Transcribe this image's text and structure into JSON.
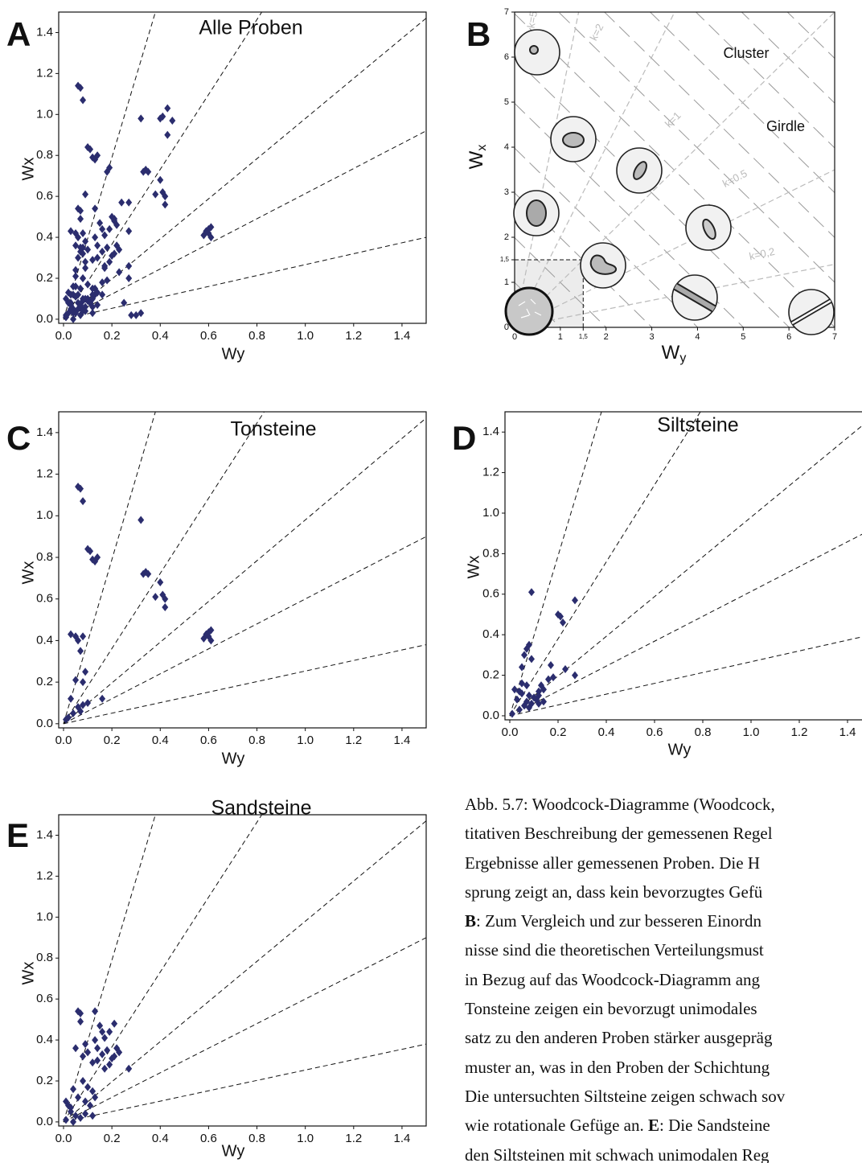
{
  "chart_data": [
    {
      "type": "scatter",
      "panel": "A",
      "title": "Alle Proben",
      "xlabel": "Wy",
      "ylabel": "Wx",
      "color": "#2b2d6e",
      "xlim": [
        -0.02,
        1.5
      ],
      "ylim": [
        -0.02,
        1.5
      ],
      "xticks": [
        {
          "value": 0,
          "label": "0.0"
        },
        0.2,
        0.4,
        0.6,
        0.8,
        {
          "value": 1,
          "label": "1.0"
        },
        1.2,
        1.4
      ],
      "yticks": [
        {
          "value": 0,
          "label": "0.0"
        },
        0.2,
        0.4,
        0.6,
        0.8,
        {
          "value": 1,
          "label": "1.0"
        },
        1.2,
        1.4
      ],
      "reference_lines": [
        {
          "x": [
            0,
            0.38
          ],
          "y": [
            0,
            1.5
          ]
        },
        {
          "x": [
            0,
            0.82
          ],
          "y": [
            0,
            1.5
          ]
        },
        {
          "x": [
            0,
            1.5
          ],
          "y": [
            0,
            1.47
          ]
        },
        {
          "x": [
            0,
            1.5
          ],
          "y": [
            0,
            0.92
          ]
        },
        {
          "x": [
            0,
            1.5
          ],
          "y": [
            0,
            0.4
          ]
        }
      ],
      "x": [
        0.06,
        0.07,
        0.08,
        0.1,
        0.11,
        0.12,
        0.13,
        0.14,
        0.32,
        0.33,
        0.34,
        0.35,
        0.38,
        0.4,
        0.41,
        0.42,
        0.42,
        0.58,
        0.59,
        0.6,
        0.61,
        0.61,
        0.6,
        0.03,
        0.05,
        0.06,
        0.07,
        0.08,
        0.05,
        0.08,
        0.09,
        0.06,
        0.07,
        0.08,
        0.1,
        0.16,
        0.03,
        0.02,
        0.01,
        0.04,
        0.43,
        0.41,
        0.4,
        0.45,
        0.43,
        0.18,
        0.19,
        0.24,
        0.27,
        0.28,
        0.3,
        0.32,
        0.25,
        0.09,
        0.27,
        0.2,
        0.21,
        0.22,
        0.08,
        0.07,
        0.06,
        0.09,
        0.05,
        0.17,
        0.23,
        0.27,
        0.18,
        0.16,
        0.13,
        0.14,
        0.12,
        0.02,
        0.04,
        0.05,
        0.07,
        0.08,
        0.1,
        0.11,
        0.09,
        0.12,
        0.14,
        0.06,
        0.04,
        0.08,
        0.01,
        0.03,
        0.05,
        0.12,
        0.07,
        0.06,
        0.07,
        0.13,
        0.07,
        0.05,
        0.09,
        0.1,
        0.08,
        0.13,
        0.15,
        0.16,
        0.17,
        0.19,
        0.21,
        0.14,
        0.16,
        0.18,
        0.2,
        0.22,
        0.23,
        0.19,
        0.17,
        0.27,
        0.12,
        0.14,
        0.21,
        0.04,
        0.08,
        0.1,
        0.12,
        0.13,
        0.06,
        0.09,
        0.11,
        0.02,
        0.03,
        0.05,
        0.07,
        0.09,
        0.01,
        0.04,
        0.12,
        0.01,
        0.03
      ],
      "values": [
        1.14,
        1.13,
        1.07,
        0.84,
        0.83,
        0.79,
        0.78,
        0.8,
        0.98,
        0.72,
        0.73,
        0.72,
        0.61,
        0.68,
        0.62,
        0.6,
        0.56,
        0.41,
        0.43,
        0.44,
        0.45,
        0.4,
        0.42,
        0.43,
        0.42,
        0.4,
        0.35,
        0.42,
        0.21,
        0.2,
        0.25,
        0.08,
        0.06,
        0.09,
        0.1,
        0.12,
        0.12,
        0.03,
        0.02,
        0.05,
        1.03,
        0.99,
        0.98,
        0.97,
        0.9,
        0.72,
        0.74,
        0.57,
        0.43,
        0.02,
        0.02,
        0.03,
        0.08,
        0.61,
        0.57,
        0.5,
        0.49,
        0.46,
        0.35,
        0.33,
        0.3,
        0.28,
        0.24,
        0.25,
        0.23,
        0.2,
        0.19,
        0.18,
        0.15,
        0.13,
        0.12,
        0.13,
        0.12,
        0.16,
        0.15,
        0.1,
        0.09,
        0.08,
        0.06,
        0.06,
        0.07,
        0.05,
        0.03,
        0.04,
        0.01,
        0.08,
        0.11,
        0.1,
        0.07,
        0.54,
        0.53,
        0.54,
        0.49,
        0.36,
        0.38,
        0.34,
        0.32,
        0.4,
        0.47,
        0.44,
        0.41,
        0.44,
        0.48,
        0.36,
        0.33,
        0.35,
        0.31,
        0.36,
        0.34,
        0.28,
        0.26,
        0.26,
        0.29,
        0.3,
        0.32,
        0.16,
        0.2,
        0.17,
        0.15,
        0.12,
        0.12,
        0.1,
        0.08,
        0.08,
        0.05,
        0.03,
        0.02,
        0.04,
        0.01,
        0,
        0.03,
        0.1,
        0.07
      ]
    },
    {
      "type": "diagram",
      "panel": "B",
      "xlabel": {
        "main": "W",
        "sub": "y"
      },
      "ylabel": {
        "main": "W",
        "sub": "x"
      },
      "xlim": [
        0,
        7
      ],
      "ylim": [
        0,
        7
      ],
      "xticks": [
        0,
        1,
        {
          "value": 1.5,
          "label": "1,5"
        },
        2,
        3,
        4,
        5,
        6,
        7
      ],
      "yticks": [
        0,
        1,
        {
          "value": 1.5,
          "label": "1,5"
        },
        2,
        3,
        4,
        5,
        6,
        7
      ],
      "k_lines": [
        {
          "label": "k=5",
          "x": [
            0,
            1.4
          ],
          "y": [
            0,
            7
          ]
        },
        {
          "label": "k=2",
          "x": [
            0,
            3.5
          ],
          "y": [
            0,
            7
          ]
        },
        {
          "label": "k=1",
          "x": [
            0,
            7
          ],
          "y": [
            0,
            7
          ]
        },
        {
          "label": "k=0.5",
          "x": [
            0,
            7
          ],
          "y": [
            0,
            3.5
          ]
        },
        {
          "label": "k=0,2",
          "x": [
            0,
            7
          ],
          "y": [
            0,
            1.4
          ]
        }
      ],
      "annotations": [
        "Cluster",
        "Girdle"
      ]
    },
    {
      "type": "scatter",
      "panel": "C",
      "title": "Tonsteine",
      "xlabel": "Wy",
      "ylabel": "Wx",
      "color": "#2b2d6e",
      "xlim": [
        -0.02,
        1.5
      ],
      "ylim": [
        -0.02,
        1.5
      ],
      "xticks": [
        {
          "value": 0,
          "label": "0.0"
        },
        0.2,
        0.4,
        0.6,
        0.8,
        {
          "value": 1,
          "label": "1.0"
        },
        1.2,
        1.4
      ],
      "yticks": [
        {
          "value": 0,
          "label": "0.0"
        },
        0.2,
        0.4,
        0.6,
        0.8,
        {
          "value": 1,
          "label": "1.0"
        },
        1.2,
        1.4
      ],
      "reference_lines": [
        {
          "x": [
            0,
            0.38
          ],
          "y": [
            0,
            1.5
          ]
        },
        {
          "x": [
            0,
            0.83
          ],
          "y": [
            0,
            1.5
          ]
        },
        {
          "x": [
            0,
            1.5
          ],
          "y": [
            0,
            1.47
          ]
        },
        {
          "x": [
            0,
            1.5
          ],
          "y": [
            0,
            0.9
          ]
        },
        {
          "x": [
            0,
            1.5
          ],
          "y": [
            0,
            0.38
          ]
        }
      ],
      "x": [
        0.06,
        0.07,
        0.08,
        0.1,
        0.11,
        0.12,
        0.13,
        0.14,
        0.32,
        0.33,
        0.34,
        0.35,
        0.38,
        0.4,
        0.41,
        0.42,
        0.42,
        0.58,
        0.59,
        0.6,
        0.61,
        0.61,
        0.6,
        0.03,
        0.05,
        0.06,
        0.07,
        0.08,
        0.05,
        0.08,
        0.09,
        0.06,
        0.07,
        0.08,
        0.1,
        0.16,
        0.03,
        0.02,
        0.01,
        0.04
      ],
      "values": [
        1.14,
        1.13,
        1.07,
        0.84,
        0.83,
        0.79,
        0.78,
        0.8,
        0.98,
        0.72,
        0.73,
        0.72,
        0.61,
        0.68,
        0.62,
        0.6,
        0.56,
        0.41,
        0.43,
        0.44,
        0.45,
        0.4,
        0.42,
        0.43,
        0.42,
        0.4,
        0.35,
        0.42,
        0.21,
        0.2,
        0.25,
        0.08,
        0.06,
        0.09,
        0.1,
        0.12,
        0.12,
        0.03,
        0.02,
        0.05
      ]
    },
    {
      "type": "scatter",
      "panel": "D",
      "title": "Siltsteine",
      "xlabel": "Wy",
      "ylabel": "Wx",
      "color": "#2b2d6e",
      "xlim": [
        -0.02,
        1.5
      ],
      "ylim": [
        -0.02,
        1.5
      ],
      "xticks": [
        {
          "value": 0,
          "label": "0.0"
        },
        0.2,
        0.4,
        0.6,
        0.8,
        {
          "value": 1,
          "label": "1.0"
        },
        1.2,
        1.4
      ],
      "yticks": [
        {
          "value": 0,
          "label": "0.0"
        },
        0.2,
        0.4,
        0.6,
        0.8,
        {
          "value": 1,
          "label": "1.0"
        },
        1.2,
        1.4
      ],
      "reference_lines": [
        {
          "x": [
            0,
            0.38
          ],
          "y": [
            0,
            1.5
          ]
        },
        {
          "x": [
            0,
            0.79
          ],
          "y": [
            0,
            1.5
          ]
        },
        {
          "x": [
            0,
            1.5
          ],
          "y": [
            0,
            1.47
          ]
        },
        {
          "x": [
            0,
            1.5
          ],
          "y": [
            0,
            0.92
          ]
        },
        {
          "x": [
            0,
            1.5
          ],
          "y": [
            0,
            0.4
          ]
        }
      ],
      "x": [
        0.09,
        0.27,
        0.2,
        0.21,
        0.22,
        0.08,
        0.07,
        0.06,
        0.09,
        0.05,
        0.17,
        0.23,
        0.27,
        0.18,
        0.16,
        0.13,
        0.14,
        0.12,
        0.02,
        0.04,
        0.05,
        0.07,
        0.08,
        0.1,
        0.11,
        0.09,
        0.12,
        0.14,
        0.06,
        0.04,
        0.08,
        0.01,
        0.03,
        0.05,
        0.12,
        0.07
      ],
      "values": [
        0.61,
        0.57,
        0.5,
        0.49,
        0.46,
        0.35,
        0.33,
        0.3,
        0.28,
        0.24,
        0.25,
        0.23,
        0.2,
        0.19,
        0.18,
        0.15,
        0.13,
        0.12,
        0.13,
        0.12,
        0.16,
        0.15,
        0.1,
        0.09,
        0.08,
        0.06,
        0.06,
        0.07,
        0.05,
        0.03,
        0.04,
        0.01,
        0.08,
        0.11,
        0.1,
        0.07
      ]
    },
    {
      "type": "scatter",
      "panel": "E",
      "title": "Sandsteine",
      "xlabel": "Wy",
      "ylabel": "Wx",
      "color": "#2b2d6e",
      "xlim": [
        -0.02,
        1.5
      ],
      "ylim": [
        -0.02,
        1.5
      ],
      "xticks": [
        {
          "value": 0,
          "label": "0.0"
        },
        0.2,
        0.4,
        0.6,
        0.8,
        {
          "value": 1,
          "label": "1.0"
        },
        1.2,
        1.4
      ],
      "yticks": [
        {
          "value": 0,
          "label": "0.0"
        },
        0.2,
        0.4,
        0.6,
        0.8,
        {
          "value": 1,
          "label": "1.0"
        },
        1.2,
        1.4
      ],
      "reference_lines": [
        {
          "x": [
            0,
            0.38
          ],
          "y": [
            0,
            1.5
          ]
        },
        {
          "x": [
            0,
            0.82
          ],
          "y": [
            0,
            1.5
          ]
        },
        {
          "x": [
            0,
            1.5
          ],
          "y": [
            0,
            1.47
          ]
        },
        {
          "x": [
            0,
            1.5
          ],
          "y": [
            0,
            0.9
          ]
        },
        {
          "x": [
            0,
            1.5
          ],
          "y": [
            0,
            0.38
          ]
        }
      ],
      "x": [
        0.06,
        0.07,
        0.13,
        0.07,
        0.05,
        0.09,
        0.1,
        0.08,
        0.13,
        0.15,
        0.16,
        0.17,
        0.19,
        0.21,
        0.14,
        0.16,
        0.18,
        0.2,
        0.22,
        0.23,
        0.19,
        0.17,
        0.27,
        0.12,
        0.14,
        0.21,
        0.04,
        0.08,
        0.1,
        0.12,
        0.13,
        0.06,
        0.09,
        0.11,
        0.02,
        0.03,
        0.05,
        0.07,
        0.09,
        0.01,
        0.04,
        0.12,
        0.01,
        0.03
      ],
      "values": [
        0.54,
        0.53,
        0.54,
        0.49,
        0.36,
        0.38,
        0.34,
        0.32,
        0.4,
        0.47,
        0.44,
        0.41,
        0.44,
        0.48,
        0.36,
        0.33,
        0.35,
        0.31,
        0.36,
        0.34,
        0.28,
        0.26,
        0.26,
        0.29,
        0.3,
        0.32,
        0.16,
        0.2,
        0.17,
        0.15,
        0.12,
        0.12,
        0.1,
        0.08,
        0.08,
        0.05,
        0.03,
        0.02,
        0.04,
        0.01,
        0,
        0.03,
        0.1,
        0.07
      ]
    }
  ],
  "caption": {
    "lines": [
      [
        {
          "text": "Abb. 5.7: Woodcock-Diagramme (Woodcock,"
        }
      ],
      [
        {
          "text": "titativen Beschreibung der gemessenen Regel"
        }
      ],
      [
        {
          "text": "Ergebnisse aller gemessenen Proben. Die H"
        }
      ],
      [
        {
          "text": "sprung zeigt an, dass kein bevorzugtes Gefü"
        }
      ],
      [
        {
          "text": "B",
          "bold": true
        },
        {
          "text": ": Zum Vergleich und zur besseren Einordn"
        }
      ],
      [
        {
          "text": "nisse sind die theoretischen Verteilungsmust"
        }
      ],
      [
        {
          "text": "in Bezug auf das Woodcock-Diagramm ang"
        }
      ],
      [
        {
          "text": "Tonsteine zeigen ein bevorzugt unimodales"
        }
      ],
      [
        {
          "text": "satz zu den anderen Proben stärker ausgepräg"
        }
      ],
      [
        {
          "text": "muster an, was in den Proben der Schichtung"
        }
      ],
      [
        {
          "text": "Die untersuchten Siltsteine zeigen schwach sov"
        }
      ],
      [
        {
          "text": "wie rotationale Gefüge an. "
        },
        {
          "text": "E",
          "bold": true
        },
        {
          "text": ": Die Sandsteine"
        }
      ],
      [
        {
          "text": "den Siltsteinen mit schwach unimodalen Reg"
        }
      ]
    ]
  }
}
